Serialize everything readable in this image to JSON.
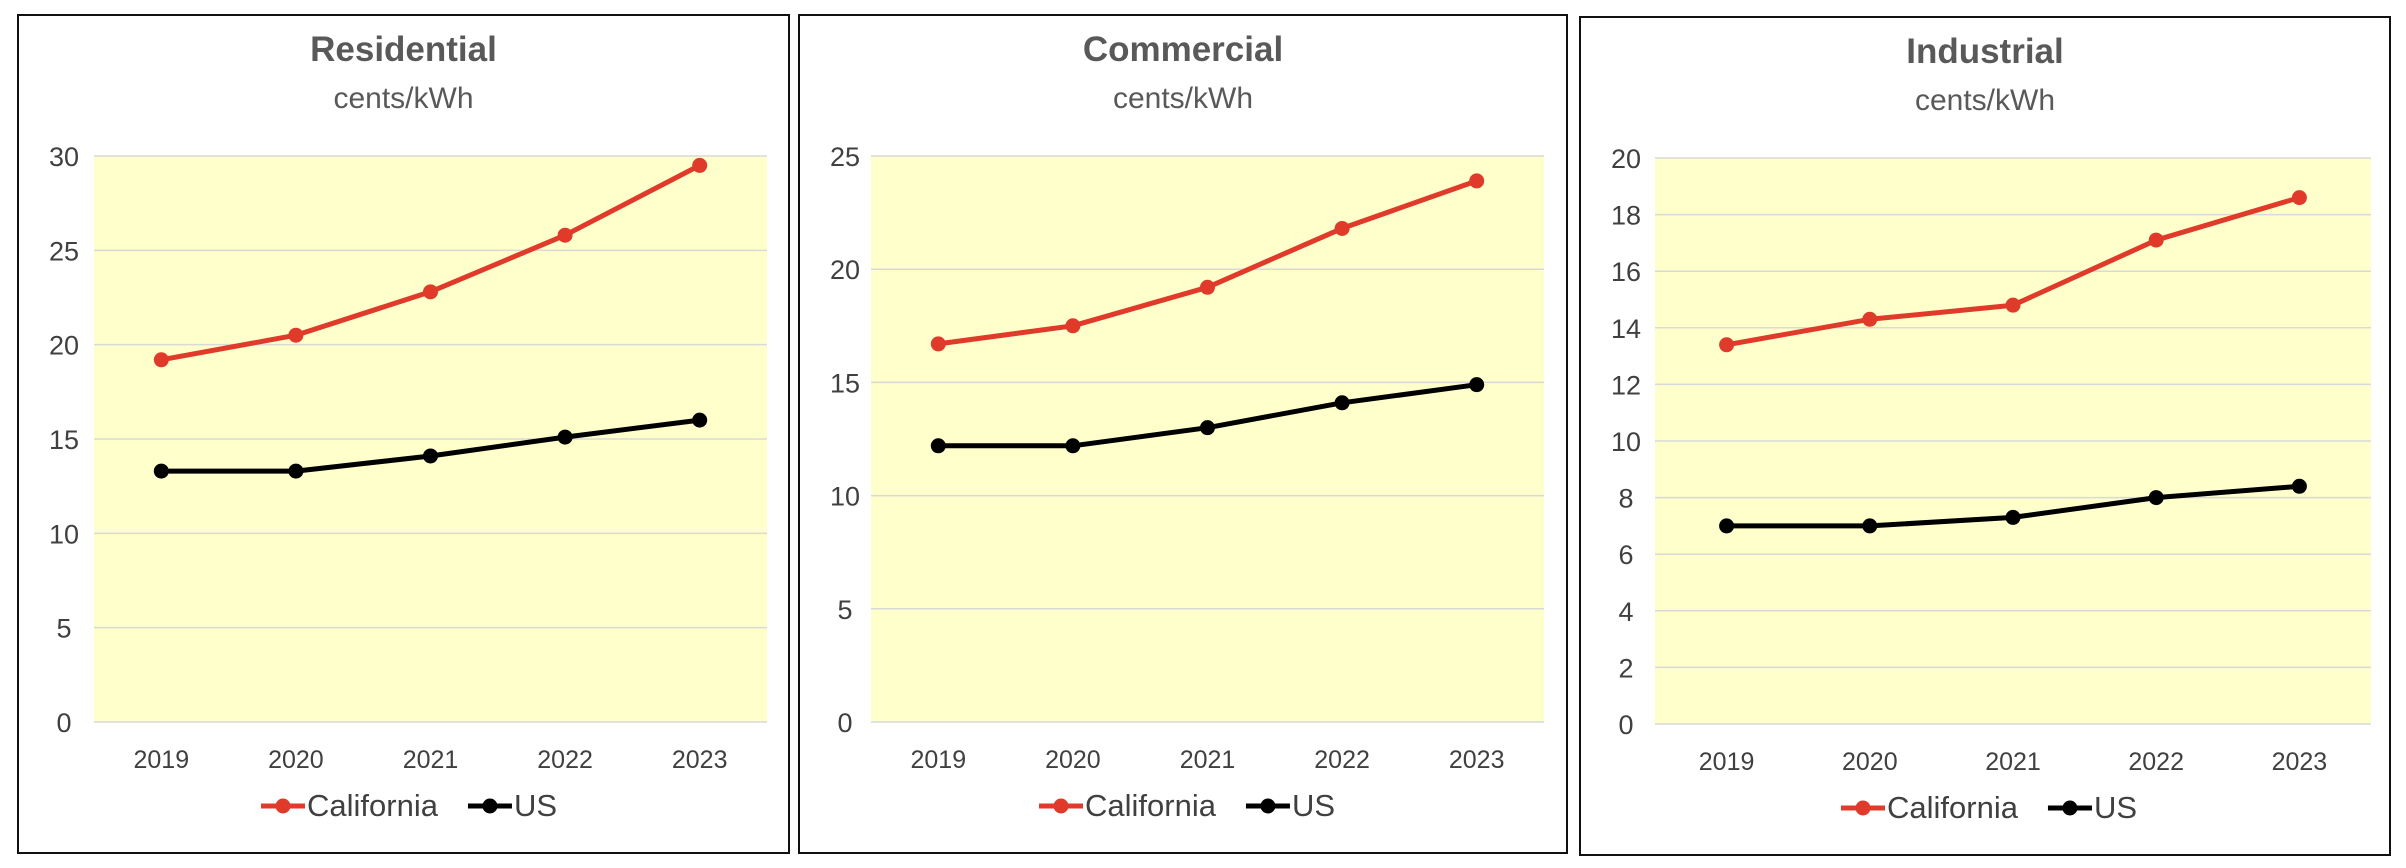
{
  "colors": {
    "plot_bg": "#ffffcc",
    "grid": "#d9d9d9",
    "california": "#e03a2a",
    "us": "#000000"
  },
  "chart_data": [
    {
      "type": "line",
      "title": "Residential",
      "subtitle": "cents/kWh",
      "x": [
        "2019",
        "2020",
        "2021",
        "2022",
        "2023"
      ],
      "ylim": [
        0,
        30
      ],
      "yticks": [
        "0",
        "5",
        "10",
        "15",
        "20",
        "25",
        "30"
      ],
      "grid": true,
      "legend": "bottom",
      "series": [
        {
          "name": "California",
          "color": "#e03a2a",
          "values": [
            19.2,
            20.5,
            22.8,
            25.8,
            29.5
          ]
        },
        {
          "name": "US",
          "color": "#000000",
          "values": [
            13.3,
            13.3,
            14.1,
            15.1,
            16.0
          ]
        }
      ]
    },
    {
      "type": "line",
      "title": "Commercial",
      "subtitle": "cents/kWh",
      "x": [
        "2019",
        "2020",
        "2021",
        "2022",
        "2023"
      ],
      "ylim": [
        0,
        25
      ],
      "yticks": [
        "0",
        "5",
        "10",
        "15",
        "20",
        "25"
      ],
      "grid": true,
      "legend": "bottom",
      "series": [
        {
          "name": "California",
          "color": "#e03a2a",
          "values": [
            16.7,
            17.5,
            19.2,
            21.8,
            23.9
          ]
        },
        {
          "name": "US",
          "color": "#000000",
          "values": [
            12.2,
            12.2,
            13.0,
            14.1,
            14.9
          ]
        }
      ]
    },
    {
      "type": "line",
      "title": "Industrial",
      "subtitle": "cents/kWh",
      "x": [
        "2019",
        "2020",
        "2021",
        "2022",
        "2023"
      ],
      "ylim": [
        0,
        20
      ],
      "yticks": [
        "0",
        "2",
        "4",
        "6",
        "8",
        "10",
        "12",
        "14",
        "16",
        "18",
        "20"
      ],
      "grid": true,
      "legend": "bottom",
      "series": [
        {
          "name": "California",
          "color": "#e03a2a",
          "values": [
            13.4,
            14.3,
            14.8,
            17.1,
            18.6
          ]
        },
        {
          "name": "US",
          "color": "#000000",
          "values": [
            7.0,
            7.0,
            7.3,
            8.0,
            8.4
          ]
        }
      ]
    }
  ]
}
